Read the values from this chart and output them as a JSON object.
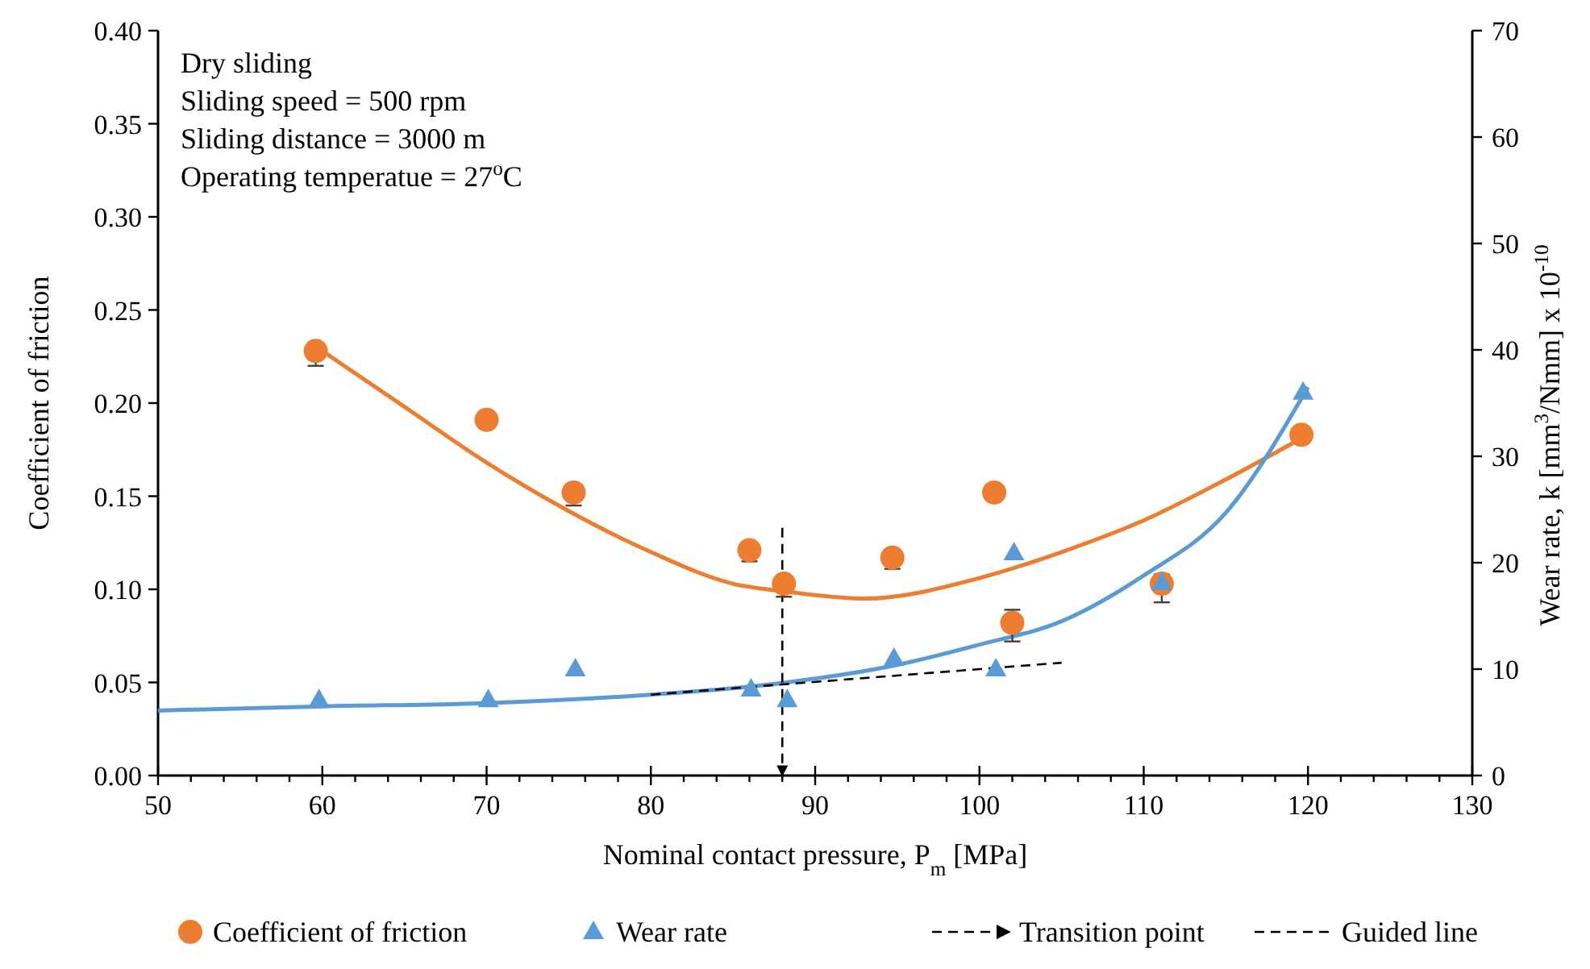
{
  "chart_data": {
    "type": "scatter",
    "xlabel": "Nominal contact pressure, P$_{m}$ [MPa]",
    "ylabel": "Coefficient of friction",
    "y2label": "Wear rate, k [mm$^{3}$/Nmm] x 10$^{-10}$",
    "annotations": [
      "Dry sliding",
      "Sliding speed = 500 rpm",
      "Sliding distance = 3000 m",
      "Operating temperatue = 27$^{o}$C"
    ],
    "xlim": [
      50,
      130
    ],
    "xticks": [
      50,
      {
        "value": 52,
        "label": null
      },
      {
        "value": 54,
        "label": null
      },
      {
        "value": 56,
        "label": null
      },
      {
        "value": 58,
        "label": null
      },
      60,
      {
        "value": 62,
        "label": null
      },
      {
        "value": 64,
        "label": null
      },
      {
        "value": 66,
        "label": null
      },
      {
        "value": 68,
        "label": null
      },
      70,
      {
        "value": 72,
        "label": null
      },
      {
        "value": 74,
        "label": null
      },
      {
        "value": 76,
        "label": null
      },
      {
        "value": 78,
        "label": null
      },
      80,
      {
        "value": 82,
        "label": null
      },
      {
        "value": 84,
        "label": null
      },
      {
        "value": 86,
        "label": null
      },
      {
        "value": 88,
        "label": null
      },
      90,
      {
        "value": 92,
        "label": null
      },
      {
        "value": 94,
        "label": null
      },
      {
        "value": 96,
        "label": null
      },
      {
        "value": 98,
        "label": null
      },
      100,
      {
        "value": 102,
        "label": null
      },
      {
        "value": 104,
        "label": null
      },
      {
        "value": 106,
        "label": null
      },
      {
        "value": 108,
        "label": null
      },
      110,
      {
        "value": 112,
        "label": null
      },
      {
        "value": 114,
        "label": null
      },
      {
        "value": 116,
        "label": null
      },
      {
        "value": 118,
        "label": null
      },
      120,
      {
        "value": 122,
        "label": null
      },
      {
        "value": 124,
        "label": null
      },
      {
        "value": 126,
        "label": null
      },
      {
        "value": 128,
        "label": null
      },
      130
    ],
    "ylim": [
      0,
      0.4
    ],
    "yticks": [
      {
        "value": 0,
        "label": "0.00"
      },
      {
        "value": 0.05,
        "label": "0.05"
      },
      {
        "value": 0.1,
        "label": "0.10"
      },
      {
        "value": 0.15,
        "label": "0.15"
      },
      {
        "value": 0.2,
        "label": "0.20"
      },
      {
        "value": 0.25,
        "label": "0.25"
      },
      {
        "value": 0.3,
        "label": "0.30"
      },
      {
        "value": 0.35,
        "label": "0.35"
      },
      {
        "value": 0.4,
        "label": "0.40"
      }
    ],
    "y2lim": [
      0,
      70
    ],
    "y2ticks": [
      0,
      10,
      20,
      30,
      40,
      50,
      60,
      70
    ],
    "grid": false,
    "legend": "bottom",
    "series": [
      {
        "name": "Coefficient of friction",
        "marker": "circle",
        "color": "#ed7d31",
        "x": [
          59.6,
          70,
          75.3,
          86,
          88.1,
          94.7,
          100.9,
          102,
          111.1,
          119.6
        ],
        "values": [
          0.228,
          0.191,
          0.152,
          0.121,
          0.103,
          0.117,
          0.152,
          0.082,
          0.103,
          0.183
        ],
        "errors": [
          [
            0.22,
            0.228
          ],
          null,
          [
            0.145,
            0.152
          ],
          [
            0.115,
            0.121
          ],
          [
            0.096,
            0.103
          ],
          [
            0.111,
            0.117
          ],
          null,
          [
            0.072,
            0.089
          ],
          [
            0.093,
            0.108
          ],
          null
        ]
      },
      {
        "type": "line",
        "marker": "none",
        "line_style": "solid",
        "color": "#ed7d31",
        "x": [
          60,
          65,
          70,
          75,
          80,
          85,
          88,
          93,
          100,
          105,
          110,
          115,
          120
        ],
        "values": [
          0.228,
          0.198,
          0.168,
          0.142,
          0.12,
          0.103,
          0.099,
          0.095,
          0.106,
          0.12,
          0.137,
          0.159,
          0.183
        ]
      },
      {
        "name": "Wear rate",
        "marker": "triangle",
        "axis": "y2",
        "color": "#5b9bd5",
        "x": [
          59.8,
          70.1,
          75.4,
          86.1,
          88.3,
          94.8,
          101,
          102.1,
          111.1,
          119.7
        ],
        "values": [
          7.1,
          7.1,
          10,
          8.1,
          7.1,
          11,
          10,
          20.9,
          18.1,
          36
        ]
      },
      {
        "type": "line",
        "marker": "none",
        "line_style": "solid",
        "axis": "y2",
        "color": "#5b9bd5",
        "x": [
          50,
          60,
          70,
          80,
          88,
          95,
          100,
          105,
          110,
          115,
          120
        ],
        "values": [
          6.1,
          6.5,
          6.8,
          7.6,
          8.7,
          10.4,
          12.3,
          14.5,
          18.8,
          24.7,
          36.5
        ]
      },
      {
        "name": "Transition point",
        "type": "line",
        "marker": "none",
        "line_style": "dashed",
        "color": "#000000",
        "x": [
          88,
          88
        ],
        "values": [
          0.133,
          0
        ]
      },
      {
        "name": "Guided line",
        "type": "line",
        "marker": "none",
        "line_style": "dashed",
        "axis": "y2",
        "color": "#000000",
        "x": [
          80,
          105
        ],
        "values": [
          7.6,
          10.6
        ]
      }
    ]
  }
}
